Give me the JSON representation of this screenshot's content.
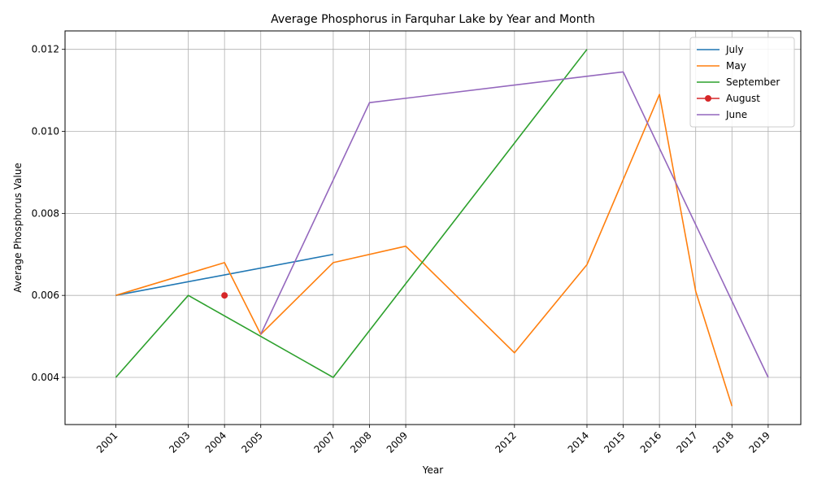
{
  "chart_data": {
    "type": "line",
    "title": "Average Phosphorus in Farquhar Lake by Year and Month",
    "xlabel": "Year",
    "ylabel": "Average Phosphorus Value",
    "xlim": [
      1999.6,
      2019.9
    ],
    "ylim": [
      0.00285,
      0.01245
    ],
    "x_ticks": [
      2001,
      2003,
      2004,
      2005,
      2007,
      2008,
      2009,
      2012,
      2014,
      2015,
      2016,
      2017,
      2018,
      2019
    ],
    "y_ticks": [
      0.004,
      0.006,
      0.008,
      0.01,
      0.012
    ],
    "y_tick_labels": [
      "0.004",
      "0.006",
      "0.008",
      "0.010",
      "0.012"
    ],
    "grid": true,
    "legend_position": "top-right",
    "series": [
      {
        "name": "July",
        "color": "#1f77b4",
        "marker": false,
        "x": [
          2001,
          2007
        ],
        "values": [
          0.006,
          0.007
        ]
      },
      {
        "name": "May",
        "color": "#ff7f0e",
        "marker": false,
        "x": [
          2001,
          2004,
          2005,
          2007,
          2009,
          2012,
          2014,
          2016,
          2017,
          2018
        ],
        "values": [
          0.006,
          0.0068,
          0.00505,
          0.0068,
          0.0072,
          0.0046,
          0.00675,
          0.0109,
          0.0061,
          0.0033
        ]
      },
      {
        "name": "September",
        "color": "#2ca02c",
        "marker": false,
        "x": [
          2001,
          2003,
          2005,
          2007,
          2014
        ],
        "values": [
          0.004,
          0.006,
          0.005,
          0.004,
          0.012
        ]
      },
      {
        "name": "August",
        "color": "#d62728",
        "marker": true,
        "x": [
          2004
        ],
        "values": [
          0.006
        ]
      },
      {
        "name": "June",
        "color": "#9467bd",
        "marker": false,
        "x": [
          2005,
          2008,
          2015,
          2019
        ],
        "values": [
          0.00505,
          0.0107,
          0.01145,
          0.004
        ]
      }
    ]
  }
}
